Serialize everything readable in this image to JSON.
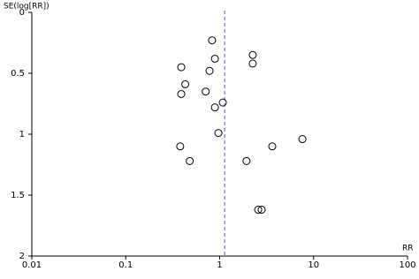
{
  "chart_data": {
    "type": "scatter",
    "xlabel": "RR",
    "ylabel": "SE(log[RR])",
    "x": [
      0.83,
      2.25,
      0.89,
      0.39,
      0.78,
      2.25,
      0.43,
      0.71,
      0.39,
      1.08,
      0.89,
      0.97,
      0.38,
      3.63,
      7.6,
      0.48,
      1.93,
      2.57,
      2.8
    ],
    "values": [
      0.23,
      0.35,
      0.38,
      0.45,
      0.48,
      0.42,
      0.59,
      0.65,
      0.67,
      0.74,
      0.78,
      0.99,
      1.1,
      1.1,
      1.04,
      1.22,
      1.22,
      1.62,
      1.62
    ],
    "color": "#000000",
    "xlim": [
      0.01,
      100
    ],
    "xticks": [
      0.01,
      0.1,
      1,
      10,
      100
    ],
    "xscale": "log",
    "ylim": [
      0,
      2
    ],
    "yticks": [
      0,
      0.5,
      1,
      1.5,
      2
    ],
    "yinverted": true,
    "reference_line": 1.13,
    "reference_color": "#5555bb"
  }
}
